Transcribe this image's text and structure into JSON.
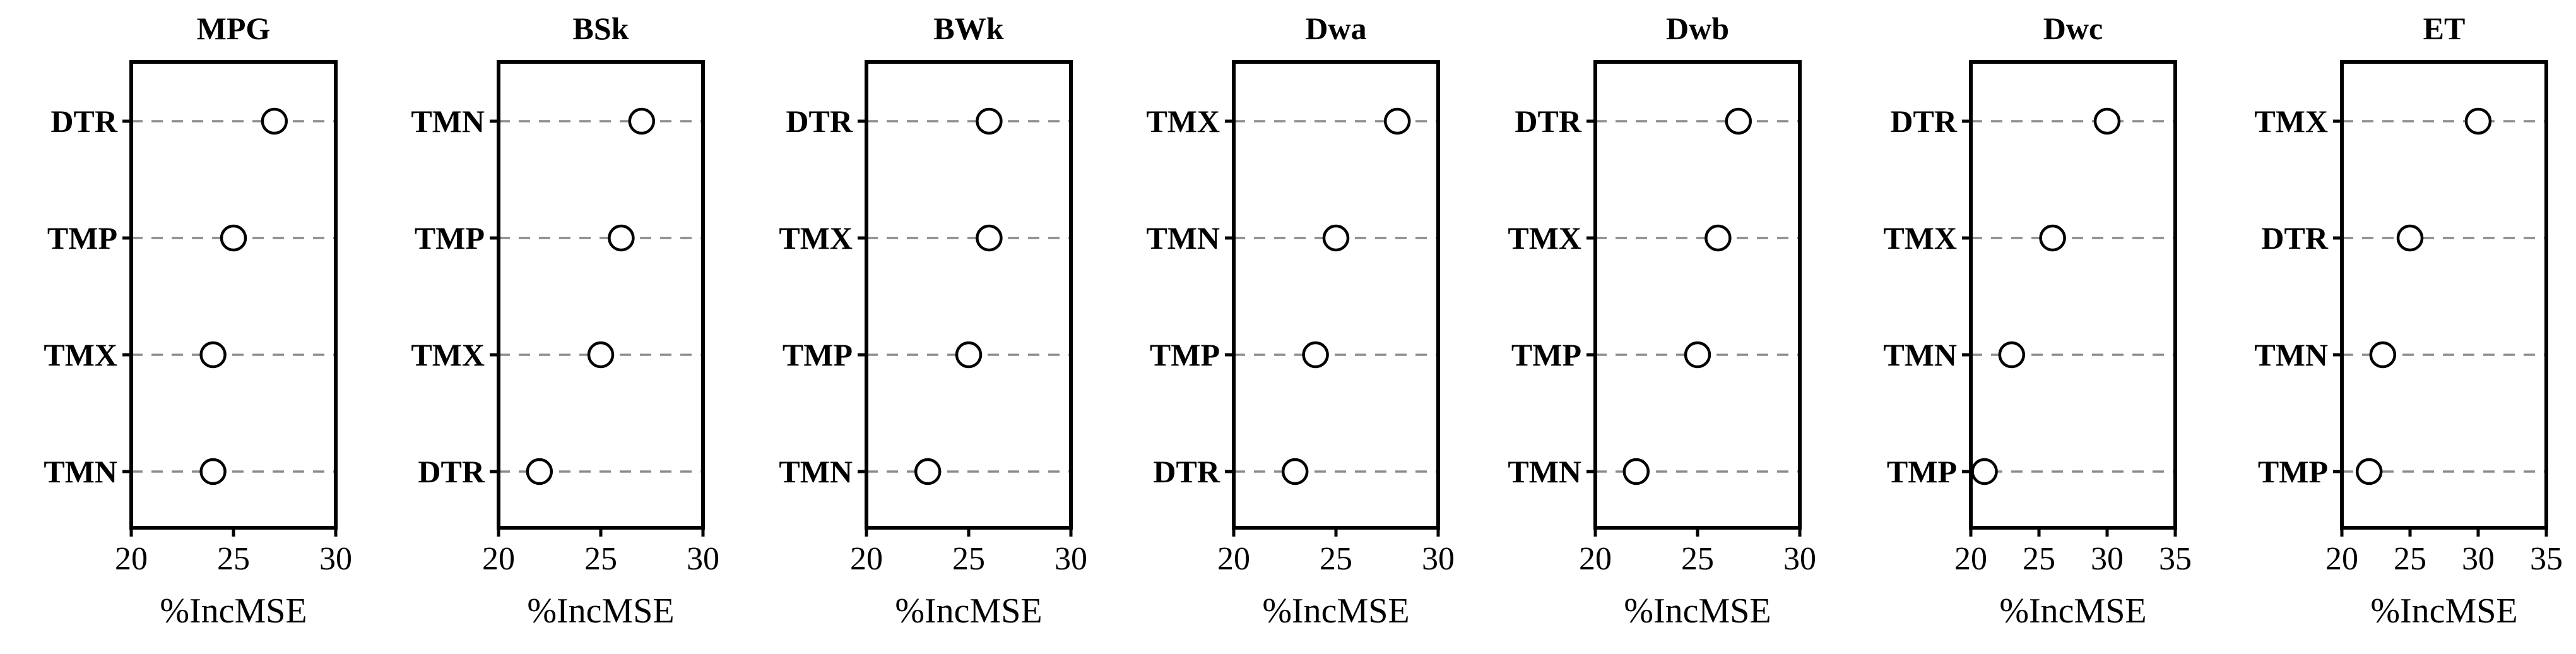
{
  "chart_data": [
    {
      "type": "scatter",
      "title": "MPG",
      "xlabel": "%IncMSE",
      "ylabel": "",
      "xlim": [
        20,
        30
      ],
      "xticks": [
        "20",
        "25",
        "30"
      ],
      "categories": [
        "DTR",
        "TMP",
        "TMX",
        "TMN"
      ],
      "values": [
        27,
        25,
        24,
        24
      ],
      "grid": false
    },
    {
      "type": "scatter",
      "title": "BSk",
      "xlabel": "%IncMSE",
      "ylabel": "",
      "xlim": [
        20,
        30
      ],
      "xticks": [
        "20",
        "25",
        "30"
      ],
      "categories": [
        "TMN",
        "TMP",
        "TMX",
        "DTR"
      ],
      "values": [
        27,
        26,
        25,
        22
      ],
      "grid": false
    },
    {
      "type": "scatter",
      "title": "BWk",
      "xlabel": "%IncMSE",
      "ylabel": "",
      "xlim": [
        20,
        30
      ],
      "xticks": [
        "20",
        "25",
        "30"
      ],
      "categories": [
        "DTR",
        "TMX",
        "TMP",
        "TMN"
      ],
      "values": [
        26,
        26,
        25,
        23
      ],
      "grid": false
    },
    {
      "type": "scatter",
      "title": "Dwa",
      "xlabel": "%IncMSE",
      "ylabel": "",
      "xlim": [
        20,
        30
      ],
      "xticks": [
        "20",
        "25",
        "30"
      ],
      "categories": [
        "TMX",
        "TMN",
        "TMP",
        "DTR"
      ],
      "values": [
        28,
        25,
        24,
        23
      ],
      "grid": false
    },
    {
      "type": "scatter",
      "title": "Dwb",
      "xlabel": "%IncMSE",
      "ylabel": "",
      "xlim": [
        20,
        30
      ],
      "xticks": [
        "20",
        "25",
        "30"
      ],
      "categories": [
        "DTR",
        "TMX",
        "TMP",
        "TMN"
      ],
      "values": [
        27,
        26,
        25,
        22
      ],
      "grid": false
    },
    {
      "type": "scatter",
      "title": "Dwc",
      "xlabel": "%IncMSE",
      "ylabel": "",
      "xlim": [
        20,
        35
      ],
      "xticks": [
        "20",
        "25",
        "30",
        "35"
      ],
      "categories": [
        "DTR",
        "TMX",
        "TMN",
        "TMP"
      ],
      "values": [
        30,
        26,
        23,
        21
      ],
      "grid": false
    },
    {
      "type": "scatter",
      "title": "ET",
      "xlabel": "%IncMSE",
      "ylabel": "",
      "xlim": [
        20,
        35
      ],
      "xticks": [
        "20",
        "25",
        "30",
        "35"
      ],
      "categories": [
        "TMX",
        "DTR",
        "TMN",
        "TMP"
      ],
      "values": [
        30,
        25,
        23,
        22
      ],
      "grid": false
    }
  ]
}
